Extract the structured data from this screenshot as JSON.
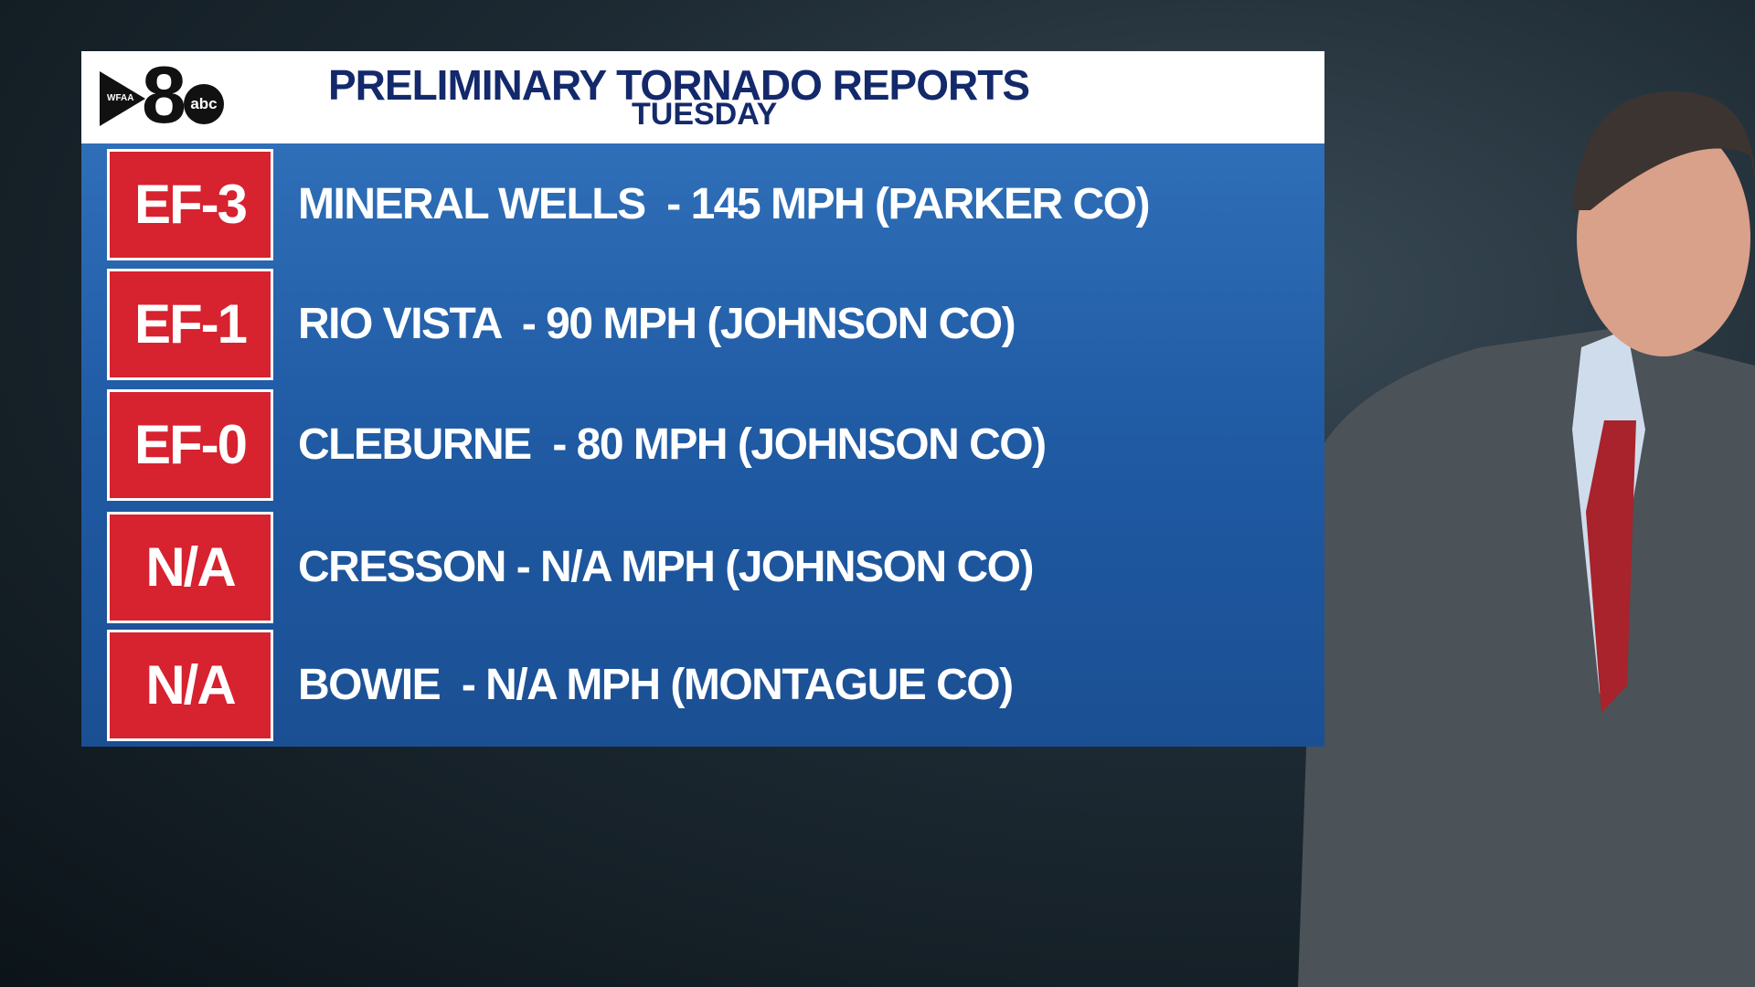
{
  "header": {
    "logo": {
      "station": "WFAA",
      "number": "8",
      "network": "abc"
    },
    "title": "PRELIMINARY TORNADO REPORTS",
    "subtitle": "TUESDAY"
  },
  "rows": [
    {
      "rating": "EF-3",
      "report": "MINERAL WELLS  - 145 MPH (PARKER CO)"
    },
    {
      "rating": "EF-1",
      "report": "RIO VISTA  - 90 MPH (JOHNSON CO)"
    },
    {
      "rating": "EF-0",
      "report": "CLEBURNE  - 80 MPH (JOHNSON CO)"
    },
    {
      "rating": "N/A",
      "report": "CRESSON - N/A MPH (JOHNSON CO)"
    },
    {
      "rating": "N/A",
      "report": "BOWIE  - N/A MPH (MONTAGUE CO)"
    }
  ]
}
